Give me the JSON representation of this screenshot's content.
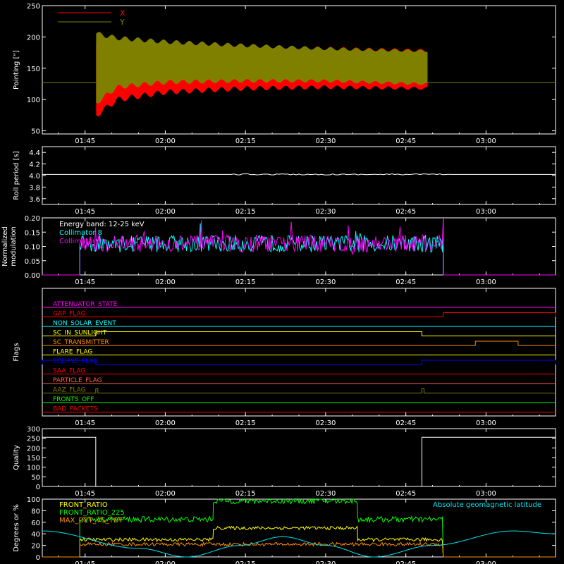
{
  "chart_data": [
    {
      "id": "pointing",
      "type": "line",
      "title": "",
      "ylabel": "Pointing [\"]",
      "xlabel": "",
      "xlim": [
        "01:37",
        "03:13"
      ],
      "ylim": [
        45,
        250
      ],
      "yticks": [
        "50",
        "100",
        "150",
        "200",
        "250"
      ],
      "xtick_labels": [
        "01:45",
        "02:00",
        "02:15",
        "02:30",
        "02:45",
        "03:00"
      ],
      "legend": [
        "X",
        "Y"
      ],
      "legend_placement": "top-left",
      "baseline_value": 127,
      "active_range": [
        "01:47",
        "02:49"
      ],
      "series": [
        {
          "name": "X",
          "color": "#ff0000",
          "upper_envelope": [
            [
              1.785,
              190
            ],
            [
              1.85,
              190
            ],
            [
              2.0,
              188
            ],
            [
              2.25,
              184
            ],
            [
              2.5,
              181
            ],
            [
              2.817,
              178
            ]
          ],
          "lower_envelope": [
            [
              1.785,
              75
            ],
            [
              1.85,
              100
            ],
            [
              2.0,
              112
            ],
            [
              2.25,
              118
            ],
            [
              2.5,
              120
            ],
            [
              2.817,
              118
            ]
          ]
        },
        {
          "name": "Y",
          "color": "#808000",
          "upper_envelope": [
            [
              1.785,
              205
            ],
            [
              1.85,
              198
            ],
            [
              2.0,
              192
            ],
            [
              2.25,
              186
            ],
            [
              2.5,
              181
            ],
            [
              2.817,
              177
            ]
          ],
          "lower_envelope": [
            [
              1.785,
              95
            ],
            [
              1.85,
              120
            ],
            [
              2.0,
              128
            ],
            [
              2.25,
              130
            ],
            [
              2.5,
              130
            ],
            [
              2.817,
              125
            ]
          ]
        }
      ]
    },
    {
      "id": "roll",
      "type": "line",
      "ylabel": "Roll period [s]",
      "ylim": [
        3.5,
        4.5
      ],
      "yticks": [
        "3.6",
        "3.8",
        "4.0",
        "4.2",
        "4.4"
      ],
      "xtick_labels": [
        "01:45",
        "02:00",
        "02:15",
        "02:30",
        "02:45",
        "03:00"
      ],
      "series": [
        {
          "name": "",
          "color": "#ffffff",
          "value": 4.02
        }
      ]
    },
    {
      "id": "modulation",
      "type": "line",
      "ylabel": "Normalized modulation",
      "ylim": [
        0,
        0.2
      ],
      "yticks": [
        "0.00",
        "0.05",
        "0.10",
        "0.15",
        "0.20"
      ],
      "xtick_labels": [
        "01:45",
        "02:00",
        "02:15",
        "02:30",
        "02:45",
        "03:00"
      ],
      "annotation": "Energy band: 12-25 keV",
      "active_range": [
        "01:44",
        "02:52"
      ],
      "series": [
        {
          "name": "Collimator 8",
          "color": "#00ffff",
          "mean": 0.11
        },
        {
          "name": "Collimator 9",
          "color": "#ff00ff",
          "mean": 0.11
        }
      ]
    },
    {
      "id": "flags",
      "type": "line",
      "ylabel": "Flags",
      "xtick_labels": [
        "01:45",
        "02:00",
        "02:15",
        "02:30",
        "02:45",
        "03:00"
      ],
      "series": [
        {
          "name": "ATTENUATOR_STATE",
          "color": "#ff00ff",
          "steps": []
        },
        {
          "name": "GAP_FLAG",
          "color": "#ff0000",
          "steps": [
            [
              "02:52",
              "03:13"
            ]
          ]
        },
        {
          "name": "NON_SOLAR_EVENT",
          "color": "#00ffff",
          "steps": []
        },
        {
          "name": "SC_IN_SUNLIGHT",
          "color": "#ffff00",
          "steps": [
            [
              "01:47",
              "02:48"
            ]
          ]
        },
        {
          "name": "SC_TRANSMITTER",
          "color": "#ff8c00",
          "steps": [
            [
              "02:58",
              "03:06"
            ]
          ]
        },
        {
          "name": "FLARE_FLAG",
          "color": "#ffff00",
          "steps": []
        },
        {
          "name": "ECLIPSE_FLAG",
          "color": "#0000ff",
          "steps": [
            [
              "01:37",
              "01:47"
            ],
            [
              "02:48",
              "03:13"
            ]
          ]
        },
        {
          "name": "SAA_FLAG",
          "color": "#ff0000",
          "steps": []
        },
        {
          "name": "PARTICLE_FLAG",
          "color": "#ff6040",
          "steps": []
        },
        {
          "name": "AAZ_FLAG",
          "color": "#808000",
          "steps": [
            [
              "01:47",
              "01:47"
            ],
            [
              "02:48",
              "02:48"
            ]
          ]
        },
        {
          "name": "FRONTS_OFF",
          "color": "#00ff00",
          "steps": []
        },
        {
          "name": "BAD_PACKETS",
          "color": "#ff0000",
          "steps": []
        }
      ]
    },
    {
      "id": "quality",
      "type": "line",
      "ylabel": "Quality",
      "ylim": [
        0,
        300
      ],
      "yticks": [
        "0",
        "50",
        "100",
        "150",
        "200",
        "250",
        "300"
      ],
      "xtick_labels": [
        "01:45",
        "02:00",
        "02:15",
        "02:30",
        "02:45",
        "03:00"
      ],
      "series": [
        {
          "name": "",
          "color": "#ffffff",
          "segments": [
            [
              "01:37",
              "01:47",
              255
            ],
            [
              "01:47",
              "02:48",
              0
            ],
            [
              "02:48",
              "03:13",
              255
            ]
          ]
        }
      ]
    },
    {
      "id": "geomag",
      "type": "line",
      "ylabel": "Degrees or %",
      "ylim": [
        0,
        100
      ],
      "yticks": [
        "0",
        "20",
        "40",
        "60",
        "80",
        "100"
      ],
      "xtick_labels": [
        "01:45",
        "02:00",
        "02:15",
        "02:30",
        "02:45",
        "03:00"
      ],
      "annotation": "Absolute geomagnetic latitude",
      "series": [
        {
          "name": "FRONT_RATIO",
          "color": "#ffff00",
          "segments": [
            [
              "01:44",
              "02:09",
              30
            ],
            [
              "02:09",
              "02:36",
              50
            ],
            [
              "02:36",
              "02:52",
              30
            ]
          ]
        },
        {
          "name": "FRONT_RATIO_225",
          "color": "#00ff00",
          "segments": [
            [
              "01:44",
              "02:09",
              65
            ],
            [
              "02:09",
              "02:36",
              97
            ],
            [
              "02:36",
              "02:52",
              65
            ]
          ]
        },
        {
          "name": "MAX_DET_VS_TOT",
          "color": "#ff8c00",
          "segments": [
            [
              "01:44",
              "02:52",
              22
            ]
          ]
        },
        {
          "name": "Absolute geomagnetic latitude",
          "color": "#00e5ee",
          "points": [
            [
              "01:37",
              45
            ],
            [
              "01:55",
              15
            ],
            [
              "02:04",
              0
            ],
            [
              "02:14",
              20
            ],
            [
              "02:22",
              35
            ],
            [
              "02:30",
              20
            ],
            [
              "02:39",
              0
            ],
            [
              "02:50",
              20
            ],
            [
              "03:05",
              45
            ],
            [
              "03:13",
              40
            ]
          ]
        }
      ]
    }
  ]
}
